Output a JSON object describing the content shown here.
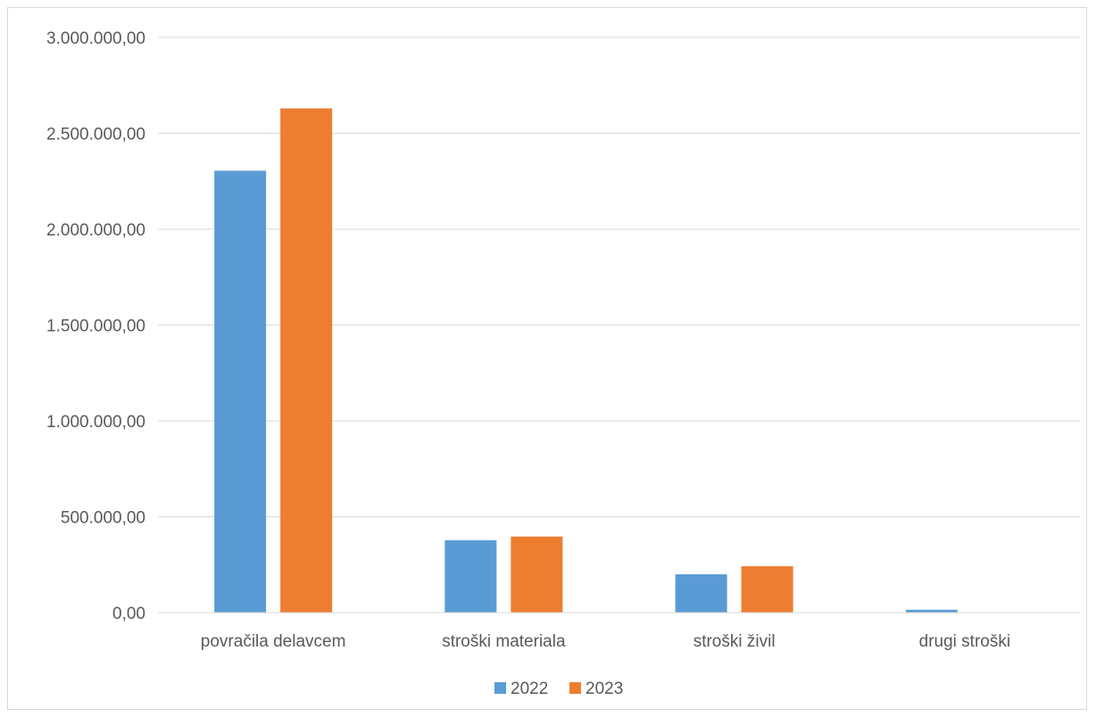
{
  "chart_data": {
    "type": "bar",
    "title": "",
    "xlabel": "",
    "ylabel": "",
    "categories": [
      "povračila delavcem",
      "stroški materiala",
      "stroški živil",
      "drugi stroški"
    ],
    "series": [
      {
        "name": "2022",
        "color": "#5b9bd5",
        "values": [
          2305000,
          378000,
          200000,
          15000
        ]
      },
      {
        "name": "2023",
        "color": "#ed7d31",
        "values": [
          2630000,
          397000,
          242000,
          0
        ]
      }
    ],
    "ylim": [
      0,
      3000000
    ],
    "yticks": [
      {
        "value": 0,
        "label": "0,00"
      },
      {
        "value": 500000,
        "label": "500.000,00"
      },
      {
        "value": 1000000,
        "label": "1.000.000,00"
      },
      {
        "value": 1500000,
        "label": "1.500.000,00"
      },
      {
        "value": 2000000,
        "label": "2.000.000,00"
      },
      {
        "value": 2500000,
        "label": "2.500.000,00"
      },
      {
        "value": 3000000,
        "label": "3.000.000,00"
      }
    ],
    "grid": true,
    "legend_position": "bottom"
  }
}
